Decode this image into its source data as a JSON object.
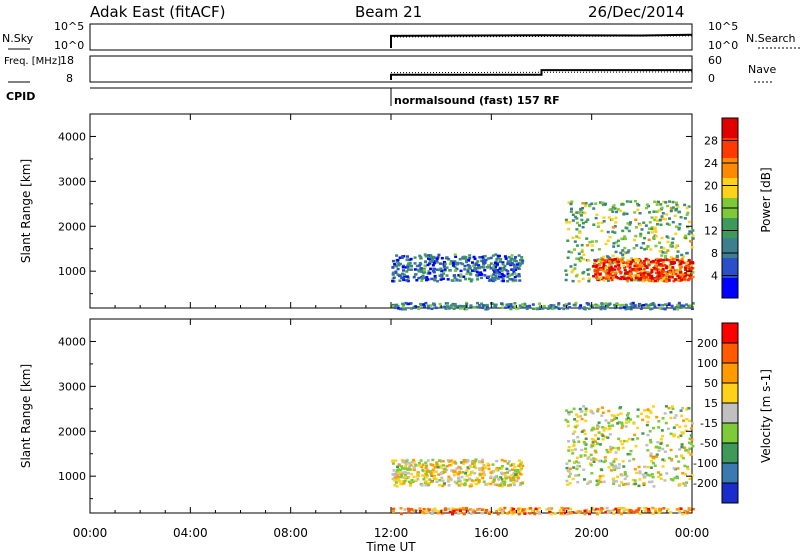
{
  "header": {
    "station": "Adak East (fitACF)",
    "beam": "Beam 21",
    "date": "26/Dec/2014"
  },
  "chart_data": [
    {
      "type": "line",
      "panel": "noise",
      "ylabel_left": "N.Sky",
      "ylabel_right": "N.Search",
      "ylim": [
        "10^0",
        "10^5"
      ],
      "left_ticks": [
        "10^5",
        "10^0"
      ],
      "right_ticks": [
        "10^5",
        "10^0"
      ],
      "series": [
        {
          "name": "N.Sky",
          "x_hours": [
            12.0,
            12.0,
            14.0,
            18.0,
            22.0,
            24.0
          ],
          "level": [
            0.0,
            0.55,
            0.56,
            0.58,
            0.57,
            0.6
          ]
        },
        {
          "name": "N.Search",
          "x_hours": [
            12.0,
            24.0
          ],
          "level": [
            0.5,
            0.55
          ]
        }
      ]
    },
    {
      "type": "line",
      "panel": "frequency",
      "ylabel_left": "Freq. [MHz]",
      "ylabel_right": "Nave",
      "left_ticks": [
        "18",
        "8"
      ],
      "right_ticks": [
        "60",
        "0"
      ],
      "series": [
        {
          "name": "Freq.",
          "x_hours": [
            12.0,
            12.0,
            18.0,
            18.0,
            24.0
          ],
          "value": [
            8,
            10.4,
            10.4,
            12.5,
            12.5
          ]
        },
        {
          "name": "Nave",
          "x_hours": [
            12.0,
            24.0
          ],
          "value": [
            20,
            22
          ]
        }
      ]
    },
    {
      "type": "line",
      "panel": "cpid",
      "label": "CPID",
      "program": "normalsound (fast) 157 RF",
      "x_hours": [
        12.0
      ]
    },
    {
      "type": "heatmap",
      "panel": "power",
      "ylabel": "Slant Range [km]",
      "yticks": [
        1000,
        2000,
        3000,
        4000
      ],
      "ylim": [
        180,
        4500
      ],
      "xlim": [
        0,
        24
      ],
      "colorbar_label": "Power [dB]",
      "colorbar_ticks": [
        "4",
        "8",
        "12",
        "16",
        "20",
        "24",
        "28"
      ],
      "colors": [
        "#0000ff",
        "#2a4fc8",
        "#3e7f8f",
        "#3d9a5a",
        "#7ec93a",
        "#ffd21a",
        "#ff8a00",
        "#ff3a00",
        "#e00000"
      ],
      "regions": [
        {
          "x": [
            12.0,
            17.2
          ],
          "y": [
            800,
            1400
          ],
          "level": 0.25
        },
        {
          "x": [
            18.9,
            24.0
          ],
          "y": [
            800,
            2600
          ],
          "level": 0.45
        },
        {
          "x": [
            20.0,
            24.0
          ],
          "y": [
            800,
            1300
          ],
          "level": 0.85
        },
        {
          "x": [
            12.0,
            24.0
          ],
          "y": [
            180,
            320
          ],
          "level": 0.3
        }
      ]
    },
    {
      "type": "heatmap",
      "panel": "velocity",
      "ylabel": "Slant Range [km]",
      "yticks": [
        1000,
        2000,
        3000,
        4000
      ],
      "ylim": [
        180,
        4500
      ],
      "xlim": [
        0,
        24
      ],
      "xticks": [
        "00:00",
        "04:00",
        "08:00",
        "12:00",
        "16:00",
        "20:00",
        "00:00"
      ],
      "xlabel": "Time UT",
      "colorbar_label": "Velocity [m s-1]",
      "colorbar_ticks": [
        "200",
        "100",
        "50",
        "15",
        "-15",
        "-50",
        "-100",
        "-200"
      ],
      "colors": [
        "#1a2ccc",
        "#3a7ab0",
        "#3d9a5a",
        "#7ecb3a",
        "#c0c0c0",
        "#ffd21a",
        "#ff9a00",
        "#ff5a00",
        "#ff0000"
      ],
      "regions": [
        {
          "x": [
            12.0,
            17.2
          ],
          "y": [
            800,
            1400
          ],
          "level": 0.55
        },
        {
          "x": [
            18.9,
            24.0
          ],
          "y": [
            800,
            2600
          ],
          "level": 0.5
        },
        {
          "x": [
            12.0,
            24.0
          ],
          "y": [
            180,
            320
          ],
          "level": 0.7
        }
      ]
    }
  ]
}
